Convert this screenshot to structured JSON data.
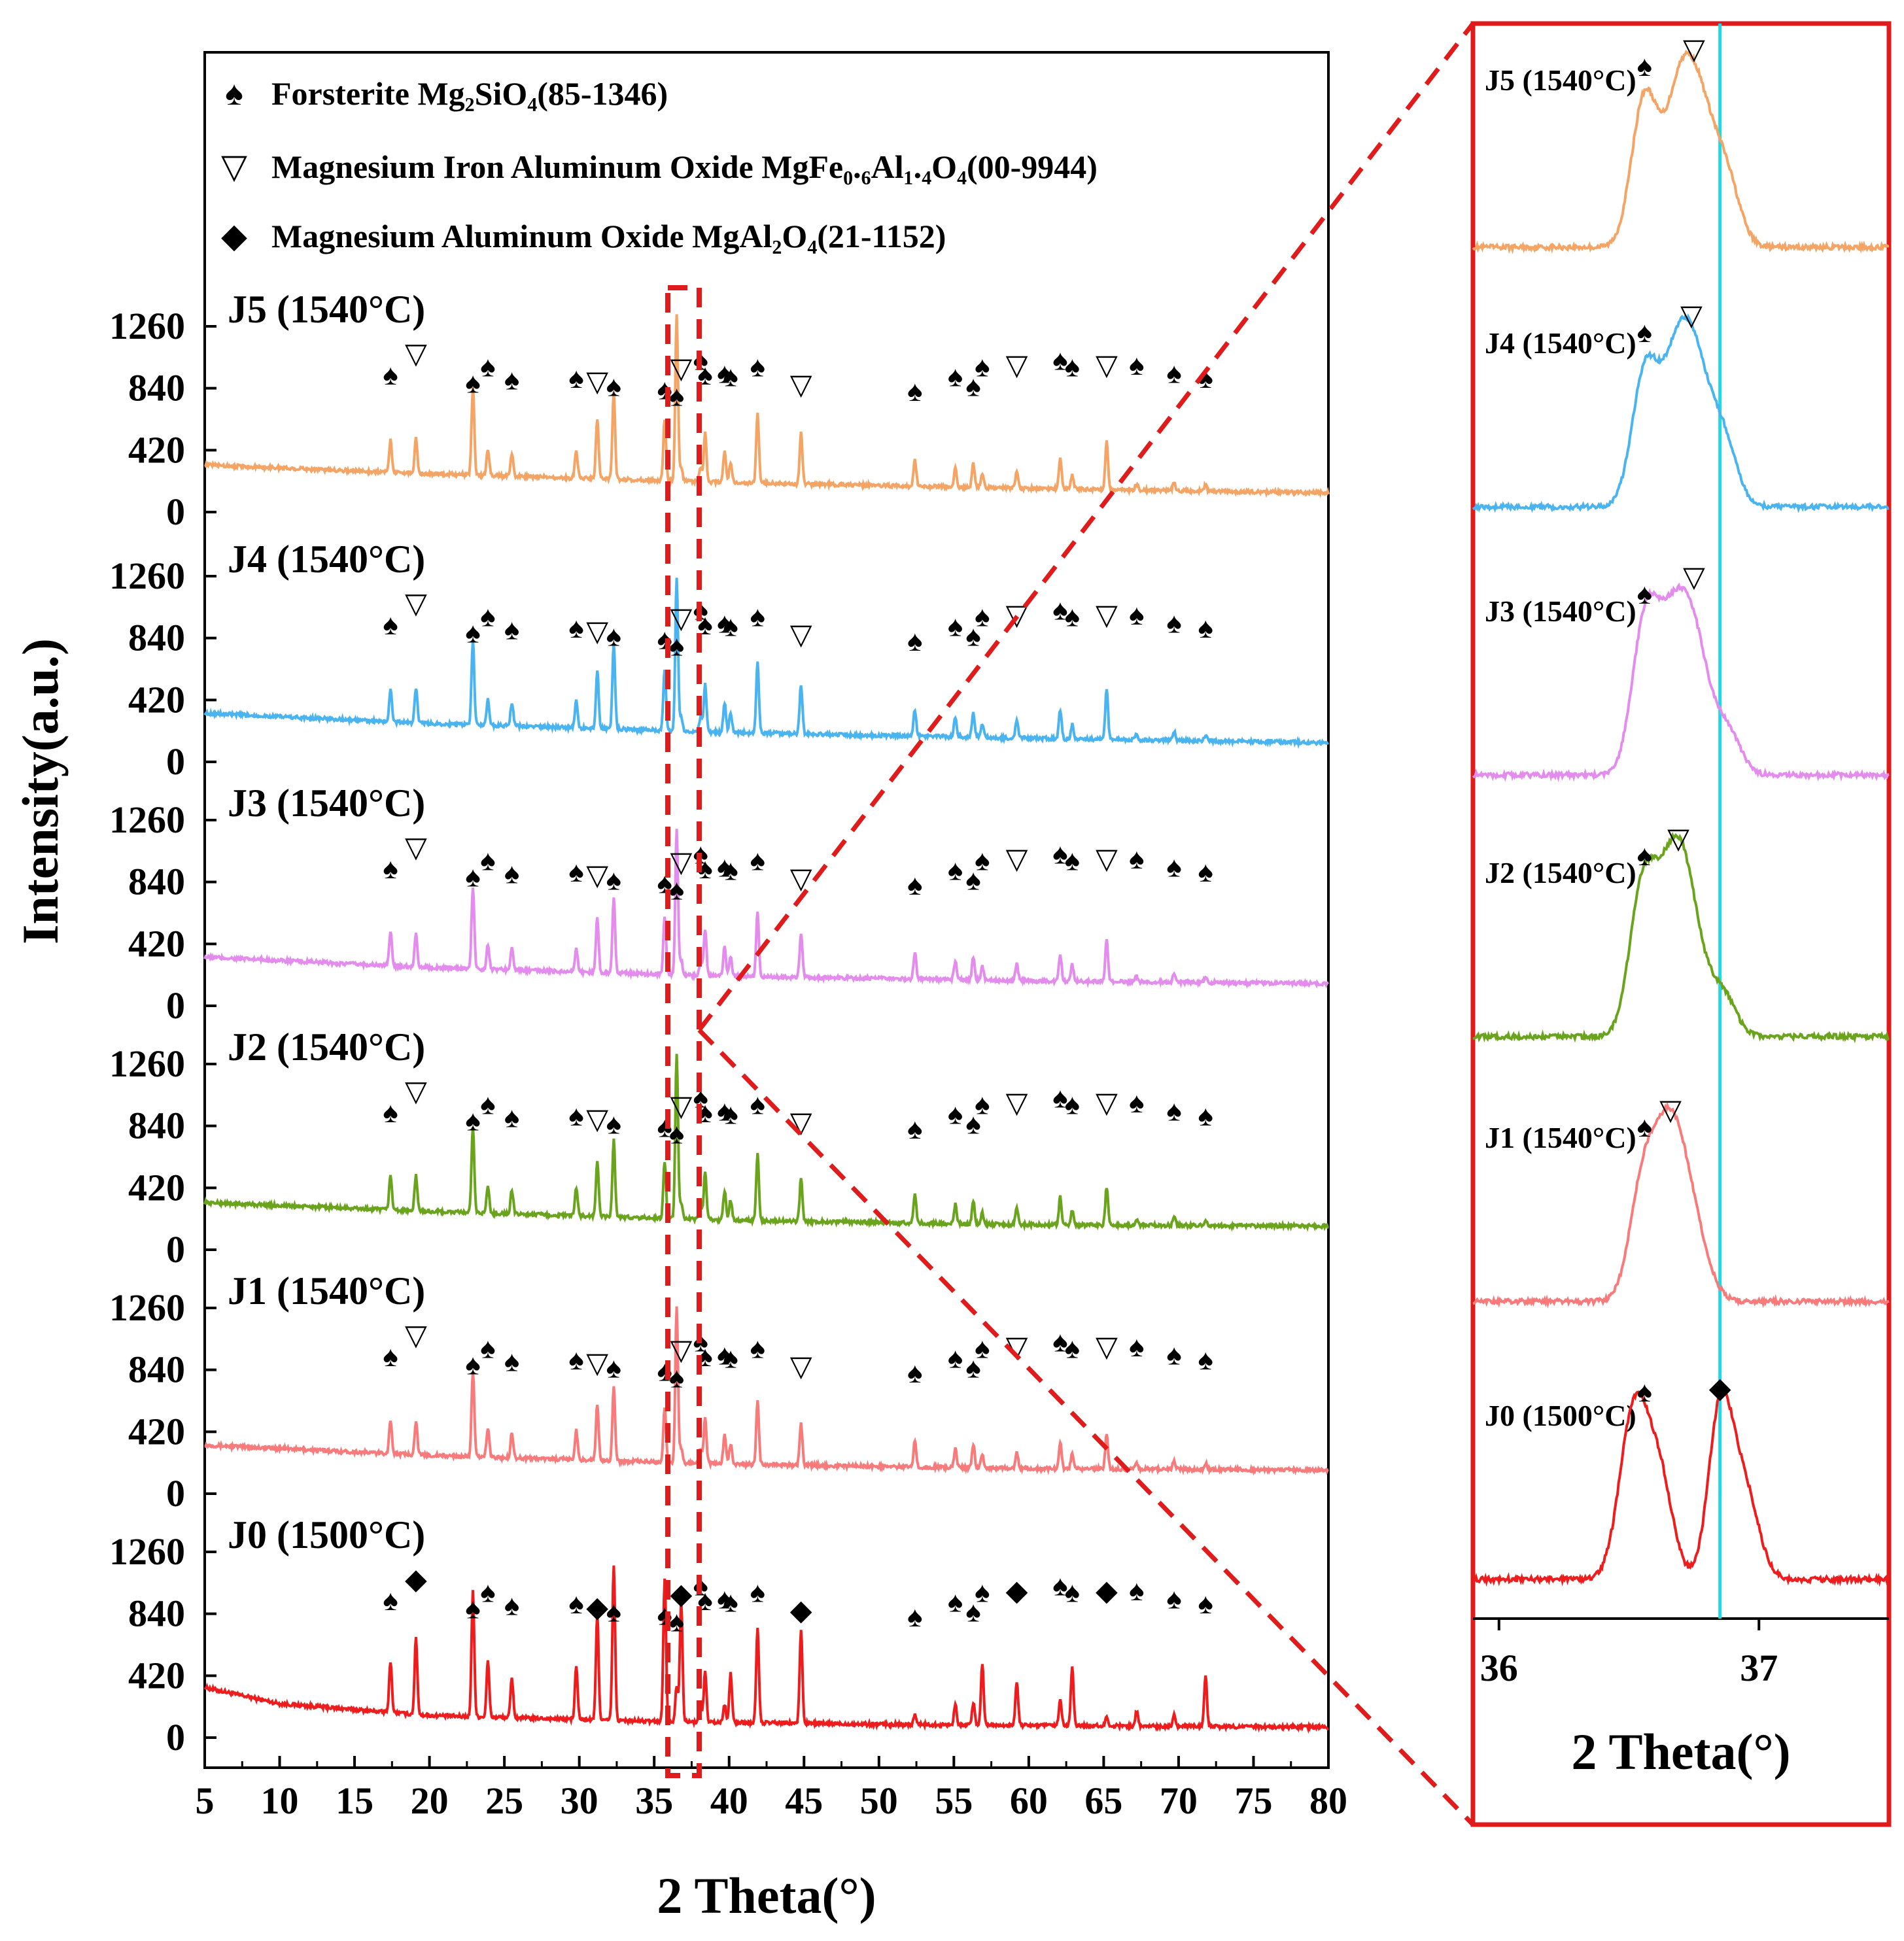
{
  "chart_data": {
    "type": "line",
    "title": "",
    "main": {
      "xlabel": "2 Theta(°)",
      "ylabel": "Intensity(a.u.)",
      "xlim": [
        5,
        80
      ],
      "xticks": [
        "5",
        "10",
        "15",
        "20",
        "25",
        "30",
        "35",
        "40",
        "45",
        "50",
        "55",
        "60",
        "65",
        "70",
        "75",
        "80"
      ],
      "yticks_per_panel": [
        "0",
        "420",
        "840",
        "1260"
      ],
      "legend": [
        {
          "symbol": "♠",
          "text": "Forsterite Mg₂SiO₄(85-1346)"
        },
        {
          "symbol": "▽",
          "text": "Magnesium Iron Aluminum Oxide MgFe₀.₆Al₁.₄O₄(00-9944)"
        },
        {
          "symbol": "◆",
          "text": "Magnesium Aluminum Oxide MgAl₂O₄(21-1152)"
        }
      ],
      "forsterite_peaks_2theta": [
        17.4,
        22.9,
        23.9,
        25.5,
        29.8,
        32.3,
        35.7,
        36.5,
        38.1,
        38.4,
        39.7,
        40.1,
        41.9,
        52.4,
        55.1,
        56.3,
        56.9,
        62.1,
        62.9,
        67.2,
        69.7,
        71.8
      ],
      "spinel_peaks_2theta": [
        19.1,
        31.2,
        36.8,
        44.8,
        59.2,
        65.2
      ],
      "series": [
        {
          "name": "J0 (1500°C)",
          "color": "#ee1c1c",
          "baseline": [
            [
              5,
              340
            ],
            [
              10,
              230
            ],
            [
              20,
              150
            ],
            [
              35,
              110
            ],
            [
              50,
              90
            ],
            [
              80,
              70
            ]
          ],
          "peak_heights": [
            350,
            520,
            860,
            380,
            270,
            360,
            720,
            1050,
            980,
            240,
            820,
            100,
            340,
            120,
            330,
            650,
            640,
            70,
            140,
            150,
            420,
            300,
            170,
            400,
            60,
            100,
            80
          ]
        },
        {
          "name": "J1 (1540°C)",
          "color": "#f87a7a",
          "baseline": [
            [
              5,
              330
            ],
            [
              20,
              260
            ],
            [
              40,
              200
            ],
            [
              60,
              170
            ],
            [
              80,
              160
            ]
          ],
          "peak_heights": [
            230,
            230,
            580,
            200,
            170,
            200,
            380,
            500,
            380,
            1050,
            100,
            100,
            320,
            200,
            140,
            440,
            280,
            180,
            130,
            160,
            90,
            110,
            180,
            110,
            240,
            40,
            60,
            40
          ]
        },
        {
          "name": "J2 (1540°C)",
          "color": "#6aa41c",
          "baseline": [
            [
              5,
              320
            ],
            [
              20,
              260
            ],
            [
              40,
              200
            ],
            [
              60,
              170
            ],
            [
              80,
              160
            ]
          ],
          "peak_heights": [
            240,
            240,
            580,
            180,
            160,
            190,
            380,
            520,
            390,
            1120,
            100,
            100,
            320,
            200,
            140,
            460,
            290,
            190,
            130,
            160,
            80,
            120,
            190,
            100,
            260,
            40,
            60,
            40
          ]
        },
        {
          "name": "J3 (1540°C)",
          "color": "#e48cee",
          "baseline": [
            [
              5,
              330
            ],
            [
              20,
              260
            ],
            [
              40,
              200
            ],
            [
              60,
              170
            ],
            [
              80,
              150
            ]
          ],
          "peak_heights": [
            230,
            230,
            560,
            170,
            160,
            160,
            380,
            520,
            400,
            980,
            100,
            100,
            320,
            200,
            140,
            440,
            300,
            180,
            130,
            160,
            90,
            110,
            180,
            110,
            280,
            40,
            60,
            40
          ]
        },
        {
          "name": "J4 (1540°C)",
          "color": "#4ab4f0",
          "baseline": [
            [
              5,
              330
            ],
            [
              20,
              260
            ],
            [
              40,
              200
            ],
            [
              60,
              160
            ],
            [
              80,
              130
            ]
          ],
          "peak_heights": [
            220,
            240,
            570,
            180,
            160,
            180,
            400,
            580,
            420,
            1040,
            100,
            100,
            330,
            200,
            140,
            480,
            340,
            180,
            130,
            160,
            90,
            120,
            200,
            100,
            340,
            40,
            60,
            40
          ]
        },
        {
          "name": "J5 (1540°C)",
          "color": "#f4a464",
          "baseline": [
            [
              5,
              320
            ],
            [
              20,
              260
            ],
            [
              40,
              200
            ],
            [
              60,
              160
            ],
            [
              80,
              130
            ]
          ],
          "peak_heights": [
            220,
            240,
            600,
            180,
            160,
            190,
            410,
            590,
            420,
            1120,
            100,
            100,
            330,
            210,
            140,
            470,
            350,
            180,
            130,
            160,
            90,
            120,
            210,
            100,
            340,
            40,
            60,
            40
          ]
        }
      ]
    },
    "inset": {
      "xlabel": "2 Theta(°)",
      "xlim": [
        35.9,
        37.5
      ],
      "xticks": [
        "36",
        "37"
      ],
      "reference_line_2theta": 36.85,
      "series": [
        {
          "name": "J5 (1540°C)",
          "color": "#f4a464",
          "peaks": [
            [
              36.56,
              0.9,
              0.05
            ],
            [
              36.68,
              0.35,
              0.05
            ],
            [
              36.75,
              1.0,
              0.075
            ],
            [
              36.88,
              0.3,
              0.05
            ]
          ]
        },
        {
          "name": "J4 (1540°C)",
          "color": "#4ab4f0",
          "peaks": [
            [
              36.56,
              0.8,
              0.05
            ],
            [
              36.67,
              0.4,
              0.06
            ],
            [
              36.74,
              0.95,
              0.075
            ],
            [
              36.87,
              0.3,
              0.05
            ]
          ]
        },
        {
          "name": "J3 (1540°C)",
          "color": "#e48cee",
          "peaks": [
            [
              36.56,
              0.85,
              0.05
            ],
            [
              36.66,
              0.75,
              0.06
            ],
            [
              36.75,
              0.75,
              0.06
            ],
            [
              36.88,
              0.25,
              0.05
            ]
          ]
        },
        {
          "name": "J2 (1540°C)",
          "color": "#6aa41c",
          "peaks": [
            [
              36.55,
              0.8,
              0.05
            ],
            [
              36.66,
              0.85,
              0.065
            ],
            [
              36.73,
              0.55,
              0.06
            ],
            [
              36.86,
              0.25,
              0.05
            ]
          ]
        },
        {
          "name": "J1 (1540°C)",
          "color": "#f87a7a",
          "peaks": [
            [
              36.55,
              0.65,
              0.05
            ],
            [
              36.65,
              1.0,
              0.06
            ],
            [
              36.74,
              0.45,
              0.06
            ]
          ]
        },
        {
          "name": "J0 (1500°C)",
          "color": "#ee1c1c",
          "peaks": [
            [
              36.52,
              1.0,
              0.055
            ],
            [
              36.62,
              0.55,
              0.05
            ],
            [
              36.85,
              0.95,
              0.045
            ],
            [
              36.94,
              0.55,
              0.055
            ]
          ]
        }
      ],
      "marker_spade_2theta": 36.56,
      "marker_triangle_2theta": [
        36.75,
        36.74,
        36.75,
        36.69,
        36.66
      ],
      "marker_diamond_2theta": 36.85
    }
  }
}
